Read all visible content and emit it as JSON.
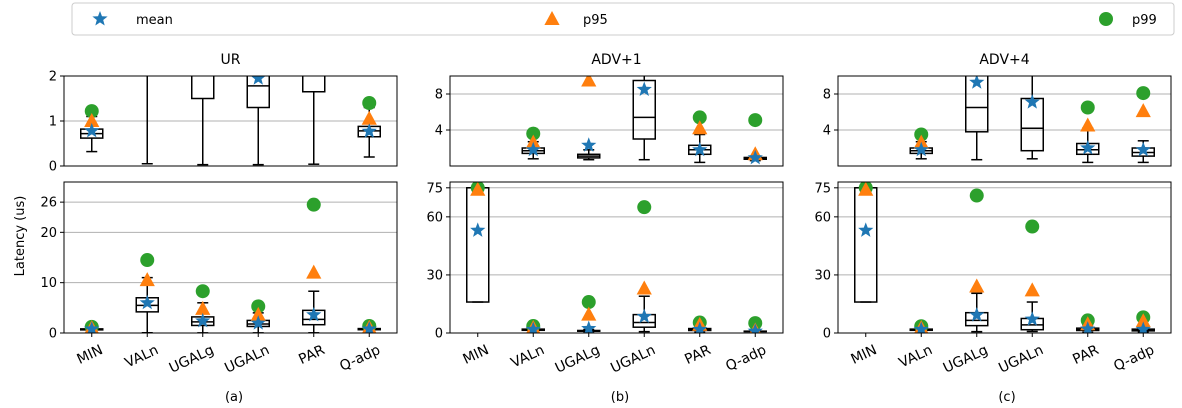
{
  "colors": {
    "mean": "#1f77b4",
    "p95": "#ff7f0e",
    "p99": "#2ca02c"
  },
  "legend": {
    "placement": "top",
    "entries": [
      {
        "label": "mean",
        "marker": "star-icon",
        "color": "#1f77b4"
      },
      {
        "label": "p95",
        "marker": "triangle-icon",
        "color": "#ff7f0e"
      },
      {
        "label": "p99",
        "marker": "circle-icon",
        "color": "#2ca02c"
      }
    ]
  },
  "ylabel": "Latency (us)",
  "chart_data": [
    {
      "type": "box",
      "title": "UR",
      "caption": "(a)",
      "categories": [
        "MIN",
        "VALn",
        "UGALg",
        "UGALn",
        "PAR",
        "Q-adp"
      ],
      "top": {
        "ylim": [
          0,
          2
        ],
        "yticks": [
          0,
          1,
          2
        ]
      },
      "bottom": {
        "ylim": [
          0,
          30
        ],
        "yticks": [
          0,
          10,
          20,
          26
        ]
      },
      "boxes": [
        {
          "category": "MIN",
          "whislo": 0.32,
          "q1": 0.62,
          "med": 0.72,
          "q3": 0.82,
          "whishi": 1.1
        },
        {
          "category": "VALn",
          "whislo": 0.05,
          "q1": 4.2,
          "med": 5.5,
          "q3": 7.0,
          "whishi": 11.0
        },
        {
          "category": "UGALg",
          "whislo": 0.03,
          "q1": 1.5,
          "med": 2.2,
          "q3": 3.2,
          "whishi": 6.0
        },
        {
          "category": "UGALn",
          "whislo": 0.03,
          "q1": 1.3,
          "med": 1.78,
          "q3": 2.5,
          "whishi": 4.0
        },
        {
          "category": "PAR",
          "whislo": 0.04,
          "q1": 1.65,
          "med": 2.7,
          "q3": 4.5,
          "whishi": 8.3
        },
        {
          "category": "Q-adp",
          "whislo": 0.2,
          "q1": 0.65,
          "med": 0.78,
          "q3": 0.88,
          "whishi": 1.3
        }
      ],
      "mean": [
        0.78,
        6.0,
        2.4,
        1.95,
        3.6,
        0.77
      ],
      "p95": [
        1.0,
        10.5,
        4.8,
        3.6,
        12.0,
        1.05
      ],
      "p99": [
        1.22,
        14.5,
        8.3,
        5.3,
        25.5,
        1.4
      ]
    },
    {
      "type": "box",
      "title": "ADV+1",
      "caption": "(b)",
      "categories": [
        "MIN",
        "VALn",
        "UGALg",
        "UGALn",
        "PAR",
        "Q-adp"
      ],
      "top": {
        "ylim": [
          0,
          10
        ],
        "yticks": [
          4,
          8
        ]
      },
      "bottom": {
        "ylim": [
          0,
          78
        ],
        "yticks": [
          0,
          30,
          60,
          75
        ]
      },
      "boxes": [
        {
          "category": "MIN",
          "whislo": 16,
          "q1": 16,
          "med": 75,
          "q3": 75,
          "whishi": 75
        },
        {
          "category": "VALn",
          "whislo": 0.8,
          "q1": 1.4,
          "med": 1.7,
          "q3": 2.0,
          "whishi": 2.7
        },
        {
          "category": "UGALg",
          "whislo": 0.7,
          "q1": 0.9,
          "med": 1.1,
          "q3": 1.3,
          "whishi": 1.8
        },
        {
          "category": "UGALn",
          "whislo": 0.7,
          "q1": 3.0,
          "med": 5.4,
          "q3": 9.5,
          "whishi": 19.0
        },
        {
          "category": "PAR",
          "whislo": 0.4,
          "q1": 1.3,
          "med": 1.8,
          "q3": 2.3,
          "whishi": 3.5
        },
        {
          "category": "Q-adp",
          "whislo": 0.6,
          "q1": 0.75,
          "med": 0.85,
          "q3": 0.95,
          "whishi": 1.1
        }
      ],
      "mean": [
        53,
        1.8,
        2.3,
        8.5,
        1.8,
        0.9
      ],
      "p95": [
        74,
        2.6,
        9.5,
        23,
        4.2,
        1.3
      ],
      "p99": [
        75,
        3.6,
        16,
        65,
        5.4,
        5.1
      ]
    },
    {
      "type": "box",
      "title": "ADV+4",
      "caption": "(c)",
      "categories": [
        "MIN",
        "VALn",
        "UGALg",
        "UGALn",
        "PAR",
        "Q-adp"
      ],
      "top": {
        "ylim": [
          0,
          10
        ],
        "yticks": [
          4,
          8
        ]
      },
      "bottom": {
        "ylim": [
          0,
          78
        ],
        "yticks": [
          0,
          30,
          60,
          75
        ]
      },
      "boxes": [
        {
          "category": "MIN",
          "whislo": 16,
          "q1": 16,
          "med": 75,
          "q3": 75,
          "whishi": 75
        },
        {
          "category": "VALn",
          "whislo": 0.8,
          "q1": 1.4,
          "med": 1.7,
          "q3": 2.0,
          "whishi": 2.7
        },
        {
          "category": "UGALg",
          "whislo": 0.7,
          "q1": 3.8,
          "med": 6.5,
          "q3": 10.5,
          "whishi": 20.5
        },
        {
          "category": "UGALn",
          "whislo": 0.8,
          "q1": 1.7,
          "med": 4.2,
          "q3": 7.5,
          "whishi": 16.0
        },
        {
          "category": "PAR",
          "whislo": 0.4,
          "q1": 1.3,
          "med": 1.8,
          "q3": 2.5,
          "whishi": 4.2
        },
        {
          "category": "Q-adp",
          "whislo": 0.4,
          "q1": 1.1,
          "med": 1.5,
          "q3": 2.0,
          "whishi": 2.8
        }
      ],
      "mean": [
        53,
        1.8,
        9.3,
        7.1,
        2.0,
        1.8
      ],
      "p95": [
        74,
        2.6,
        24,
        22,
        4.5,
        6.1
      ],
      "p99": [
        75,
        3.5,
        71,
        55,
        6.5,
        8.1
      ]
    }
  ]
}
